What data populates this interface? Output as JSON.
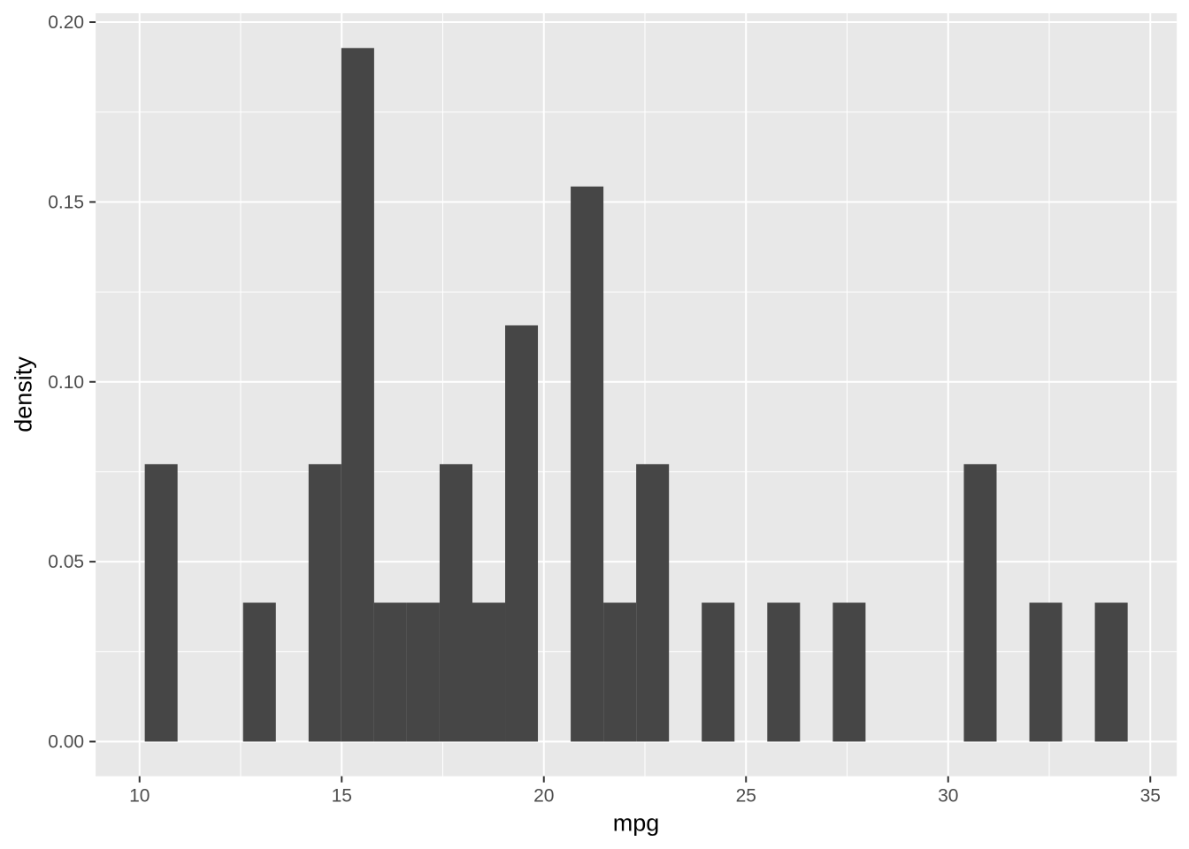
{
  "figure": {
    "kind": "histogram",
    "background_color": "#FFFFFF",
    "panel_background_color": "#E8E8E8",
    "bar_fill_color": "#464646",
    "grid_major_color": "#FFFFFF",
    "grid_minor_color": "#FFFFFF",
    "tick_mark_color": "#333333",
    "tick_label_color": "#4D4D4D",
    "axis_title_color": "#000000"
  },
  "chart_data": {
    "type": "bar",
    "subtype": "histogram-density",
    "title": "",
    "xlabel": "mpg",
    "ylabel": "density",
    "n_observations": 32,
    "binwidth": 0.8103,
    "xlim": [
      8.9137,
      35.6553
    ],
    "ylim": [
      -0.009641,
      0.202465
    ],
    "x_major_ticks": [
      10,
      15,
      20,
      25,
      30,
      35
    ],
    "x_tick_labels": [
      "10",
      "15",
      "20",
      "25",
      "30",
      "35"
    ],
    "x_minor_ticks": [
      12.5,
      17.5,
      22.5,
      27.5,
      32.5
    ],
    "y_major_ticks": [
      0.0,
      0.05,
      0.1,
      0.15,
      0.2
    ],
    "y_tick_labels": [
      "0.00",
      "0.05",
      "0.10",
      "0.15",
      "0.20"
    ],
    "y_minor_ticks": [
      0.025,
      0.075,
      0.125,
      0.175
    ],
    "grid": true,
    "legend": "none",
    "bins": [
      {
        "x0": 10.129,
        "x1": 10.94,
        "count": 2,
        "density": 0.0771
      },
      {
        "x0": 12.56,
        "x1": 13.371,
        "count": 1,
        "density": 0.0386
      },
      {
        "x0": 14.181,
        "x1": 14.991,
        "count": 2,
        "density": 0.0771
      },
      {
        "x0": 14.991,
        "x1": 15.802,
        "count": 5,
        "density": 0.1928
      },
      {
        "x0": 15.802,
        "x1": 16.612,
        "count": 1,
        "density": 0.0386
      },
      {
        "x0": 16.612,
        "x1": 17.422,
        "count": 1,
        "density": 0.0386
      },
      {
        "x0": 17.422,
        "x1": 18.233,
        "count": 2,
        "density": 0.0771
      },
      {
        "x0": 18.233,
        "x1": 19.043,
        "count": 1,
        "density": 0.0386
      },
      {
        "x0": 19.043,
        "x1": 19.853,
        "count": 3,
        "density": 0.1157
      },
      {
        "x0": 20.664,
        "x1": 21.474,
        "count": 4,
        "density": 0.1543
      },
      {
        "x0": 21.474,
        "x1": 22.284,
        "count": 1,
        "density": 0.0386
      },
      {
        "x0": 22.284,
        "x1": 23.095,
        "count": 2,
        "density": 0.0771
      },
      {
        "x0": 23.905,
        "x1": 24.716,
        "count": 1,
        "density": 0.0386
      },
      {
        "x0": 25.526,
        "x1": 26.336,
        "count": 1,
        "density": 0.0386
      },
      {
        "x0": 27.147,
        "x1": 27.957,
        "count": 1,
        "density": 0.0386
      },
      {
        "x0": 30.388,
        "x1": 31.198,
        "count": 2,
        "density": 0.0771
      },
      {
        "x0": 32.009,
        "x1": 32.819,
        "count": 1,
        "density": 0.0386
      },
      {
        "x0": 33.629,
        "x1": 34.44,
        "count": 1,
        "density": 0.0386
      }
    ]
  }
}
